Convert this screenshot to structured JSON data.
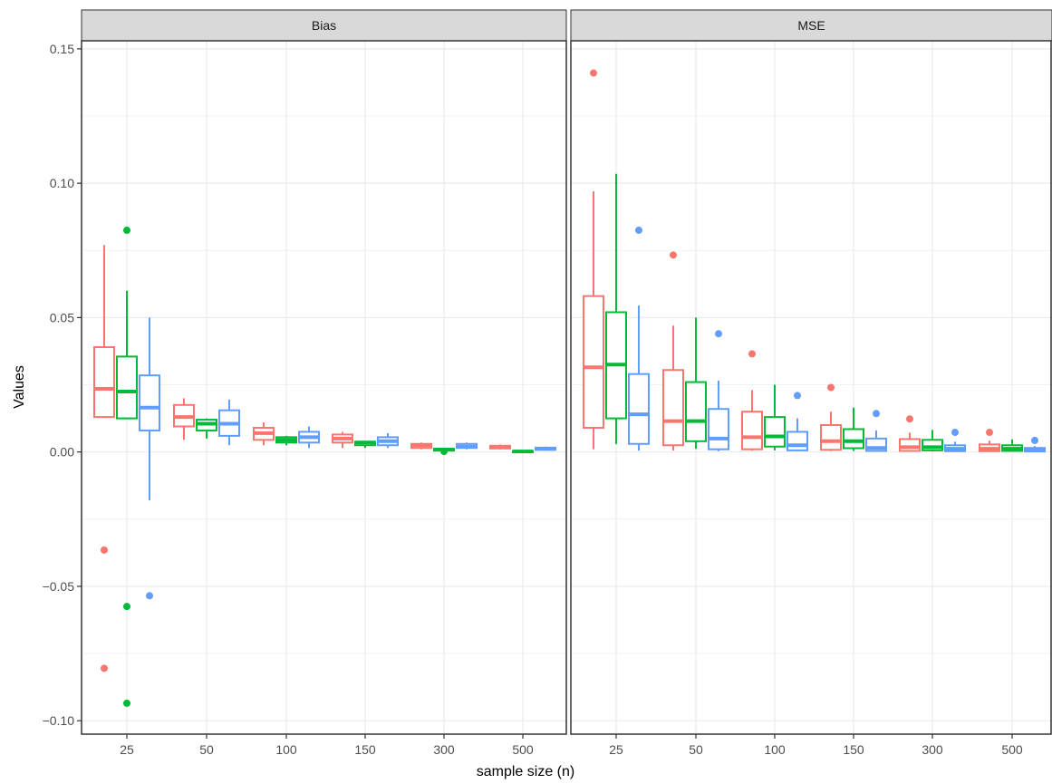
{
  "chart_data": {
    "type": "boxplot",
    "facet_labels": [
      "Bias",
      "MSE"
    ],
    "xlabel": "sample size (n)",
    "ylabel": "Values",
    "categories": [
      "25",
      "50",
      "100",
      "150",
      "300",
      "500"
    ],
    "ylim": [
      -0.105,
      0.153
    ],
    "yticks": [
      -0.1,
      -0.05,
      0.0,
      0.05,
      0.1,
      0.15
    ],
    "ytick_labels": [
      "−0.10",
      "−0.05",
      "0.00",
      "0.05",
      "0.10",
      "0.15"
    ],
    "grid": true,
    "series_colors": [
      "#f8766d",
      "#00ba38",
      "#619cff"
    ],
    "panels": [
      {
        "label": "Bias",
        "boxes": [
          [
            {
              "lower": 0.013,
              "q1": 0.013,
              "median": 0.0235,
              "q3": 0.039,
              "upper": 0.077,
              "outliers": [
                -0.0365,
                -0.0805
              ]
            },
            {
              "lower": 0.0045,
              "q1": 0.0095,
              "median": 0.013,
              "q3": 0.0175,
              "upper": 0.02,
              "outliers": []
            },
            {
              "lower": 0.0025,
              "q1": 0.0045,
              "median": 0.007,
              "q3": 0.009,
              "upper": 0.011,
              "outliers": []
            },
            {
              "lower": 0.0015,
              "q1": 0.0035,
              "median": 0.005,
              "q3": 0.0065,
              "upper": 0.0075,
              "outliers": []
            },
            {
              "lower": 0.001,
              "q1": 0.0015,
              "median": 0.0025,
              "q3": 0.003,
              "upper": 0.0035,
              "outliers": []
            },
            {
              "lower": 0.001,
              "q1": 0.0013,
              "median": 0.0018,
              "q3": 0.0023,
              "upper": 0.0028,
              "outliers": []
            }
          ],
          [
            {
              "lower": 0.0125,
              "q1": 0.0125,
              "median": 0.0225,
              "q3": 0.0355,
              "upper": 0.06,
              "outliers": [
                0.0825,
                -0.0575,
                -0.0935
              ]
            },
            {
              "lower": 0.005,
              "q1": 0.008,
              "median": 0.0105,
              "q3": 0.012,
              "upper": 0.0125,
              "outliers": []
            },
            {
              "lower": 0.0025,
              "q1": 0.0035,
              "median": 0.0045,
              "q3": 0.0055,
              "upper": 0.006,
              "outliers": []
            },
            {
              "lower": 0.0015,
              "q1": 0.0025,
              "median": 0.0035,
              "q3": 0.0038,
              "upper": 0.004,
              "outliers": []
            },
            {
              "lower": 0.0002,
              "q1": 0.0005,
              "median": 0.0009,
              "q3": 0.0012,
              "upper": 0.0015,
              "outliers": [
                0.0002
              ]
            },
            {
              "lower": 0.0,
              "q1": 0.0,
              "median": 0.0002,
              "q3": 0.0004,
              "upper": 0.0006,
              "outliers": []
            }
          ],
          [
            {
              "lower": -0.018,
              "q1": 0.008,
              "median": 0.0165,
              "q3": 0.0285,
              "upper": 0.05,
              "outliers": [
                -0.0535
              ]
            },
            {
              "lower": 0.0025,
              "q1": 0.006,
              "median": 0.0105,
              "q3": 0.0155,
              "upper": 0.0195,
              "outliers": []
            },
            {
              "lower": 0.0015,
              "q1": 0.0035,
              "median": 0.0055,
              "q3": 0.0075,
              "upper": 0.0095,
              "outliers": []
            },
            {
              "lower": 0.0015,
              "q1": 0.0025,
              "median": 0.004,
              "q3": 0.0055,
              "upper": 0.007,
              "outliers": []
            },
            {
              "lower": 0.001,
              "q1": 0.0015,
              "median": 0.002,
              "q3": 0.003,
              "upper": 0.0035,
              "outliers": []
            },
            {
              "lower": 0.0005,
              "q1": 0.0008,
              "median": 0.0012,
              "q3": 0.0016,
              "upper": 0.002,
              "outliers": []
            }
          ]
        ]
      },
      {
        "label": "MSE",
        "boxes": [
          [
            {
              "lower": 0.001,
              "q1": 0.009,
              "median": 0.0315,
              "q3": 0.058,
              "upper": 0.097,
              "outliers": [
                0.141
              ]
            },
            {
              "lower": 0.0005,
              "q1": 0.0025,
              "median": 0.0115,
              "q3": 0.0305,
              "upper": 0.047,
              "outliers": [
                0.0733
              ]
            },
            {
              "lower": 0.0005,
              "q1": 0.001,
              "median": 0.0055,
              "q3": 0.015,
              "upper": 0.023,
              "outliers": [
                0.0365
              ]
            },
            {
              "lower": 0.0003,
              "q1": 0.0008,
              "median": 0.004,
              "q3": 0.01,
              "upper": 0.015,
              "outliers": [
                0.024
              ]
            },
            {
              "lower": 0.0002,
              "q1": 0.0004,
              "median": 0.0018,
              "q3": 0.0048,
              "upper": 0.0072,
              "outliers": [
                0.0123
              ]
            },
            {
              "lower": 0.0001,
              "q1": 0.0003,
              "median": 0.0012,
              "q3": 0.0028,
              "upper": 0.0042,
              "outliers": [
                0.0073
              ]
            }
          ],
          [
            {
              "lower": 0.003,
              "q1": 0.0125,
              "median": 0.0325,
              "q3": 0.052,
              "upper": 0.1035,
              "outliers": []
            },
            {
              "lower": 0.0012,
              "q1": 0.004,
              "median": 0.0115,
              "q3": 0.026,
              "upper": 0.05,
              "outliers": []
            },
            {
              "lower": 0.0006,
              "q1": 0.002,
              "median": 0.0058,
              "q3": 0.013,
              "upper": 0.025,
              "outliers": []
            },
            {
              "lower": 0.0004,
              "q1": 0.0014,
              "median": 0.004,
              "q3": 0.0085,
              "upper": 0.0165,
              "outliers": []
            },
            {
              "lower": 0.0002,
              "q1": 0.0006,
              "median": 0.0018,
              "q3": 0.0045,
              "upper": 0.0082,
              "outliers": []
            },
            {
              "lower": 0.0001,
              "q1": 0.0004,
              "median": 0.0012,
              "q3": 0.0025,
              "upper": 0.0047,
              "outliers": []
            }
          ],
          [
            {
              "lower": 0.0005,
              "q1": 0.003,
              "median": 0.014,
              "q3": 0.029,
              "upper": 0.0545,
              "outliers": [
                0.0825
              ]
            },
            {
              "lower": 0.0003,
              "q1": 0.001,
              "median": 0.005,
              "q3": 0.016,
              "upper": 0.0265,
              "outliers": [
                0.044
              ]
            },
            {
              "lower": 0.0002,
              "q1": 0.0006,
              "median": 0.0025,
              "q3": 0.0075,
              "upper": 0.0125,
              "outliers": [
                0.021
              ]
            },
            {
              "lower": 0.0001,
              "q1": 0.0004,
              "median": 0.0015,
              "q3": 0.005,
              "upper": 0.008,
              "outliers": [
                0.0143
              ]
            },
            {
              "lower": 0.0001,
              "q1": 0.0003,
              "median": 0.0012,
              "q3": 0.0025,
              "upper": 0.0038,
              "outliers": [
                0.0073
              ]
            },
            {
              "lower": 0.0,
              "q1": 0.0002,
              "median": 0.0008,
              "q3": 0.0015,
              "upper": 0.0022,
              "outliers": [
                0.0043
              ]
            }
          ]
        ]
      }
    ]
  }
}
